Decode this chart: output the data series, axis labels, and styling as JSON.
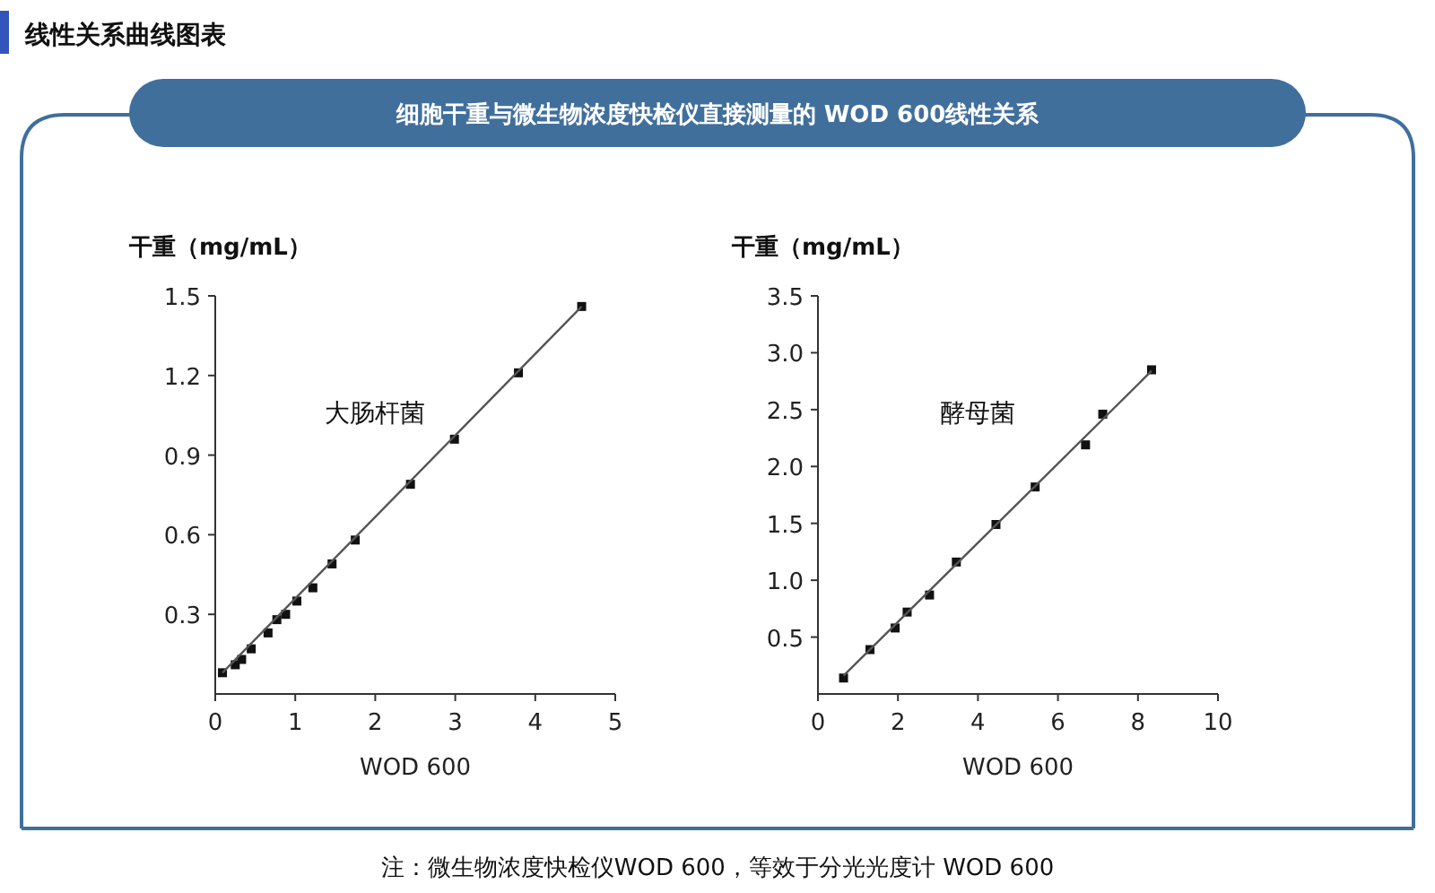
{
  "chart_data": [
    {
      "type": "other",
      "title": "线性关系曲线图表",
      "subtitle": "细胞干重与微生物浓度快检仪直接测量的 WOD 600线性关系",
      "annotations": [
        "注：微生物浓度快检仪WOD 600，等效于分光光度计 WOD 600"
      ]
    },
    {
      "type": "scatter",
      "xlabel": "WOD 600",
      "ylabel": "干重（mg/mL）",
      "xlim": [
        0,
        5
      ],
      "xticks": [
        0,
        1,
        2,
        3,
        4,
        5
      ],
      "ylim": [
        0,
        1.5
      ],
      "yticks": [
        {
          "value": 0.3,
          "label": "0.3"
        },
        {
          "value": 0.6,
          "label": "0.6"
        },
        {
          "value": 0.9,
          "label": "0.9"
        },
        {
          "value": 1.2,
          "label": "1.2"
        },
        {
          "value": 1.5,
          "label": "1.5"
        }
      ],
      "grid": false,
      "annotations": [
        "大肠杆菌"
      ],
      "series": [
        {
          "type": "scatter",
          "marker": "square",
          "color": "#111111",
          "x": [
            0.09,
            0.25,
            0.33,
            0.45,
            0.66,
            0.77,
            0.88,
            1.02,
            1.22,
            1.46,
            1.75,
            2.44,
            2.99,
            3.79,
            4.58
          ],
          "values": [
            0.08,
            0.11,
            0.13,
            0.17,
            0.23,
            0.28,
            0.3,
            0.35,
            0.4,
            0.49,
            0.58,
            0.79,
            0.96,
            1.21,
            1.46
          ]
        },
        {
          "type": "line",
          "marker": "none",
          "color": "#555555",
          "line_style": "solid",
          "x": [
            0.09,
            4.58
          ],
          "values": [
            0.08,
            1.46
          ]
        }
      ]
    },
    {
      "type": "scatter",
      "xlabel": "WOD 600",
      "ylabel": "干重（mg/mL）",
      "xlim": [
        0,
        10
      ],
      "xticks": [
        0,
        2,
        4,
        6,
        8,
        10
      ],
      "ylim": [
        0,
        3.5
      ],
      "yticks": [
        {
          "value": 0.5,
          "label": "0.5"
        },
        {
          "value": 1,
          "label": "1.0"
        },
        {
          "value": 1.5,
          "label": "1.5"
        },
        {
          "value": 2,
          "label": "2.0"
        },
        {
          "value": 2.5,
          "label": "2.5"
        },
        {
          "value": 3,
          "label": "3.0"
        },
        {
          "value": 3.5,
          "label": "3.5"
        }
      ],
      "grid": false,
      "annotations": [
        "酵母菌"
      ],
      "series": [
        {
          "type": "scatter",
          "marker": "square",
          "color": "#111111",
          "x": [
            0.64,
            1.3,
            1.93,
            2.23,
            2.79,
            3.46,
            4.45,
            5.43,
            6.69,
            7.12,
            8.34
          ],
          "values": [
            0.14,
            0.39,
            0.58,
            0.72,
            0.87,
            1.16,
            1.49,
            1.82,
            2.19,
            2.46,
            2.85
          ]
        },
        {
          "type": "line",
          "marker": "none",
          "color": "#555555",
          "line_style": "solid",
          "x": [
            0.64,
            8.34
          ],
          "values": [
            0.16,
            2.84
          ]
        }
      ]
    }
  ]
}
